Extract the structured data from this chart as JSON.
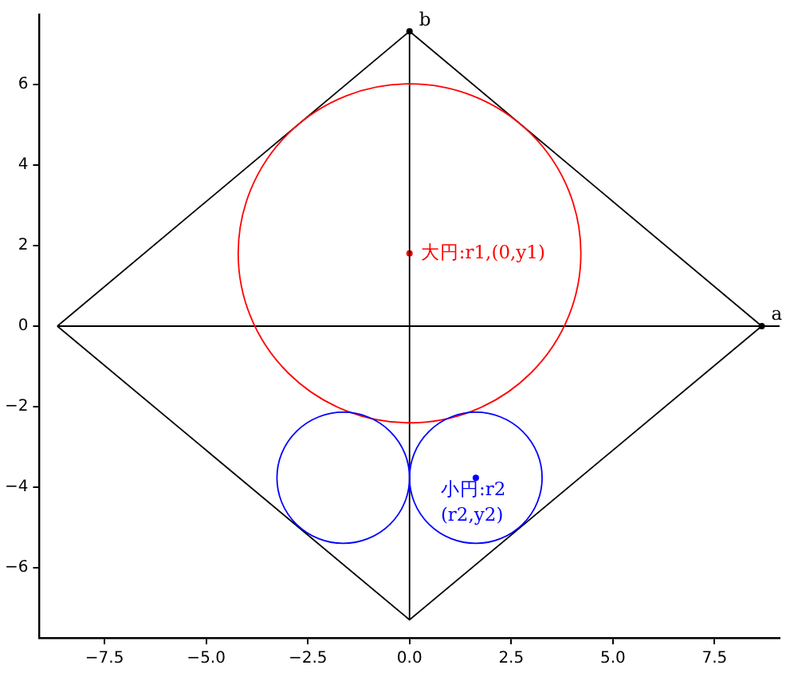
{
  "chart_data": {
    "type": "line",
    "xlim": [
      -9.1,
      9.1
    ],
    "ylim": [
      -7.75,
      7.75
    ],
    "xticks": [
      {
        "value": -7.5,
        "label": "−7.5"
      },
      {
        "value": -5,
        "label": "−5.0"
      },
      {
        "value": -2.5,
        "label": "−2.5"
      },
      {
        "value": 0,
        "label": "0.0"
      },
      {
        "value": 2.5,
        "label": "2.5"
      },
      {
        "value": 5,
        "label": "5.0"
      },
      {
        "value": 7.5,
        "label": "7.5"
      }
    ],
    "yticks": [
      {
        "value": -6,
        "label": "−6"
      },
      {
        "value": -4,
        "label": "−4"
      },
      {
        "value": -2,
        "label": "−2"
      },
      0,
      2,
      4,
      6
    ],
    "grid": false,
    "legend": false,
    "series": [
      {
        "color": "#000000",
        "x": [
          -8.66,
          0,
          8.66
        ],
        "values": [
          0,
          7.33,
          0
        ]
      },
      {
        "color": "#000000",
        "x": [
          -8.66,
          0,
          8.66
        ],
        "values": [
          0,
          -7.3,
          0
        ]
      },
      {
        "color": "#000000",
        "x": [
          -8.66,
          9.1
        ],
        "values": [
          0,
          0
        ]
      },
      {
        "color": "#000000",
        "x": [
          0,
          0
        ],
        "values": [
          -7.3,
          7.33
        ]
      },
      {
        "type": "scatter",
        "marker": "circle",
        "color": "#000000",
        "x": [
          8.66,
          0
        ],
        "values": [
          0,
          7.33
        ]
      },
      {
        "type": "scatter",
        "marker": "circle",
        "color": "#ff0000",
        "x": [
          0
        ],
        "values": [
          1.81
        ]
      },
      {
        "type": "scatter",
        "marker": "circle",
        "color": "#0000ff",
        "x": [
          1.63
        ],
        "values": [
          -3.77
        ]
      }
    ],
    "annotations": [
      {
        "text": "a",
        "x": 8.66,
        "y": 0
      },
      {
        "text": "b",
        "x": 0,
        "y": 7.33
      },
      {
        "text": "大円:r1,(0,y1)",
        "x": 0,
        "y": 1.81
      },
      {
        "text": "小円:r2\n(r2,y2)",
        "x": 1.63,
        "y": -3.77
      }
    ]
  }
}
